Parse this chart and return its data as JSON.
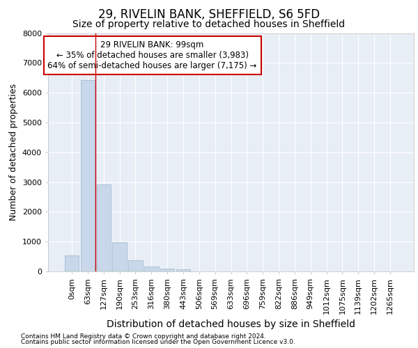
{
  "title1": "29, RIVELIN BANK, SHEFFIELD, S6 5FD",
  "title2": "Size of property relative to detached houses in Sheffield",
  "xlabel": "Distribution of detached houses by size in Sheffield",
  "ylabel": "Number of detached properties",
  "footer1": "Contains HM Land Registry data © Crown copyright and database right 2024.",
  "footer2": "Contains public sector information licensed under the Open Government Licence v3.0.",
  "annotation_line1": "29 RIVELIN BANK: 99sqm",
  "annotation_line2": "← 35% of detached houses are smaller (3,983)",
  "annotation_line3": "64% of semi-detached houses are larger (7,175) →",
  "bar_labels": [
    "0sqm",
    "63sqm",
    "127sqm",
    "190sqm",
    "253sqm",
    "316sqm",
    "380sqm",
    "443sqm",
    "506sqm",
    "569sqm",
    "633sqm",
    "696sqm",
    "759sqm",
    "822sqm",
    "886sqm",
    "949sqm",
    "1012sqm",
    "1075sqm",
    "1139sqm",
    "1202sqm",
    "1265sqm"
  ],
  "bar_values": [
    540,
    6430,
    2930,
    970,
    370,
    160,
    105,
    65,
    0,
    0,
    0,
    0,
    0,
    0,
    0,
    0,
    0,
    0,
    0,
    0,
    0
  ],
  "bar_color": "#c8d8ea",
  "bar_edge_color": "#9ab4cc",
  "ylim": [
    0,
    8000
  ],
  "background_color": "#ffffff",
  "plot_background": "#e8eef5",
  "grid_color": "#ffffff",
  "title1_fontsize": 12,
  "title2_fontsize": 10,
  "xlabel_fontsize": 10,
  "ylabel_fontsize": 9,
  "tick_fontsize": 8,
  "annotation_box_color": "#ffffff",
  "annotation_box_edge": "#cc0000",
  "redline_color": "#cc0000",
  "redline_x": 1.5
}
